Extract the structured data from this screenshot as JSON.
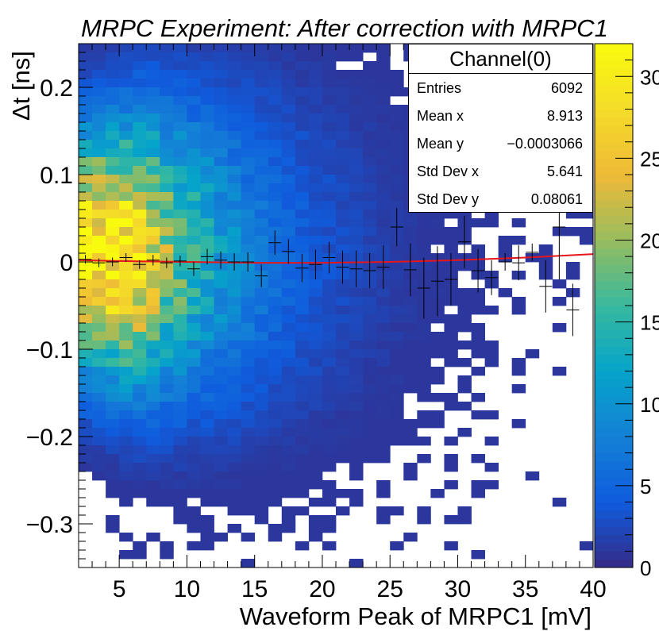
{
  "chart_data": {
    "type": "heatmap",
    "title": "MRPC Experiment: After correction with MRPC1",
    "xlabel": "Waveform Peak of MRPC1 [mV]",
    "ylabel": "Δt [ns]",
    "xlim": [
      2,
      40
    ],
    "ylim": [
      -0.35,
      0.25
    ],
    "x_ticks": [
      "5",
      "10",
      "15",
      "20",
      "25",
      "30",
      "35",
      "40"
    ],
    "y_ticks": [
      "−0.3",
      "−0.2",
      "−0.1",
      "0",
      "0.1",
      "0.2"
    ],
    "colorbar": {
      "range": [
        0,
        32
      ],
      "ticks": [
        "0",
        "5",
        "10",
        "15",
        "20",
        "25",
        "30"
      ]
    },
    "grid": false,
    "profile_points": {
      "x": [
        2.5,
        3.5,
        4.5,
        5.5,
        6.5,
        7.5,
        8.5,
        9.5,
        10.5,
        11.5,
        12.5,
        13.5,
        14.5,
        15.5,
        16.5,
        17.5,
        18.5,
        19.5,
        20.5,
        21.5,
        22.5,
        23.5,
        24.5,
        25.5,
        26.5,
        27.5,
        28.5,
        29.5,
        30.5,
        31.5,
        32.5,
        33.5,
        34.5,
        35.5,
        36.5,
        37.5,
        38.5
      ],
      "y": [
        0.003,
        -0.001,
        0.0,
        0.005,
        -0.003,
        0.002,
        -0.001,
        0.001,
        -0.008,
        0.006,
        0.002,
        0.0,
        0.0,
        -0.016,
        0.022,
        0.012,
        -0.007,
        -0.003,
        0.005,
        -0.006,
        -0.008,
        -0.01,
        -0.006,
        0.04,
        -0.009,
        -0.03,
        -0.022,
        -0.02,
        0.023,
        -0.01,
        -0.018,
        0.0,
        -0.001,
        0.011,
        -0.028,
        0.04,
        -0.055
      ],
      "yerr": [
        0.005,
        0.005,
        0.005,
        0.005,
        0.005,
        0.006,
        0.006,
        0.006,
        0.008,
        0.009,
        0.01,
        0.01,
        0.011,
        0.013,
        0.014,
        0.014,
        0.016,
        0.017,
        0.018,
        0.019,
        0.021,
        0.02,
        0.025,
        0.022,
        0.03,
        0.035,
        0.04,
        0.03,
        0.03,
        0.025,
        0.02,
        0.01,
        0.02,
        0.01,
        0.03,
        0.06,
        0.03
      ]
    },
    "fit": {
      "color": "#e8161b",
      "x": [
        2,
        5,
        10,
        15,
        20,
        25,
        30,
        35,
        40
      ],
      "y": [
        0.002,
        0.001,
        0.0,
        -0.001,
        -0.001,
        0.0,
        0.002,
        0.005,
        0.009
      ]
    }
  },
  "stats": {
    "title": "Channel(0)",
    "rows": [
      {
        "label": "Entries",
        "value": "6092"
      },
      {
        "label": "Mean x",
        "value": "8.913"
      },
      {
        "label": "Mean y",
        "value": "−0.0003066"
      },
      {
        "label": "Std Dev x",
        "value": "5.641"
      },
      {
        "label": "Std Dev y",
        "value": "0.08061"
      }
    ]
  }
}
